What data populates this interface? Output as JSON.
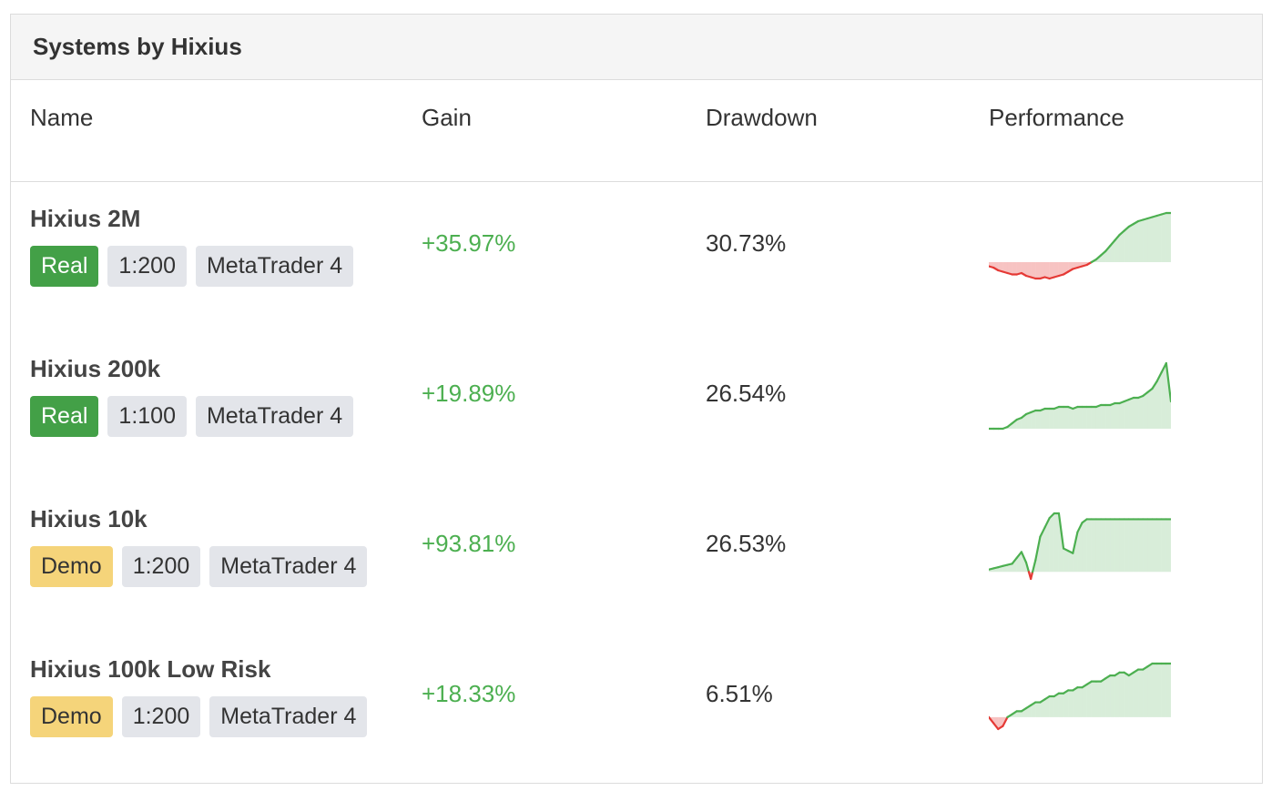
{
  "card": {
    "title": "Systems by Hixius"
  },
  "columns": {
    "name": "Name",
    "gain": "Gain",
    "drawdown": "Drawdown",
    "performance": "Performance"
  },
  "colors": {
    "positive": "#4caf50",
    "negative": "#e53935",
    "real_badge": "#43a047",
    "demo_badge": "#f5d47a"
  },
  "systems": [
    {
      "name": "Hixius 2M",
      "account_type": "Real",
      "leverage": "1:200",
      "platform": "MetaTrader 4",
      "gain": "+35.97%",
      "drawdown": "30.73%",
      "performance": {
        "values": [
          -3,
          -4,
          -6,
          -7,
          -8,
          -9,
          -9,
          -8,
          -10,
          -11,
          -12,
          -12,
          -11,
          -12,
          -11,
          -10,
          -9,
          -7,
          -5,
          -4,
          -3,
          -2,
          0,
          2,
          5,
          8,
          12,
          16,
          20,
          23,
          26,
          28,
          30,
          31,
          32,
          33,
          34,
          35,
          36,
          36
        ]
      }
    },
    {
      "name": "Hixius 200k",
      "account_type": "Real",
      "leverage": "1:100",
      "platform": "MetaTrader 4",
      "gain": "+19.89%",
      "drawdown": "26.54%",
      "performance": {
        "values": [
          0,
          0,
          0,
          0,
          1,
          3,
          5,
          6,
          8,
          9,
          10,
          10,
          11,
          11,
          11,
          12,
          12,
          12,
          11,
          12,
          12,
          12,
          12,
          12,
          13,
          13,
          13,
          14,
          14,
          15,
          16,
          17,
          17,
          18,
          20,
          22,
          26,
          31,
          36,
          15
        ]
      }
    },
    {
      "name": "Hixius 10k",
      "account_type": "Demo",
      "leverage": "1:200",
      "platform": "MetaTrader 4",
      "gain": "+93.81%",
      "drawdown": "26.53%",
      "performance": {
        "values": [
          2,
          3,
          4,
          5,
          6,
          7,
          12,
          17,
          8,
          -6,
          10,
          30,
          38,
          46,
          50,
          50,
          20,
          18,
          16,
          34,
          42,
          45,
          45,
          45,
          45,
          45,
          45,
          45,
          45,
          45,
          45,
          45,
          45,
          45,
          45,
          45,
          45,
          45,
          45,
          45
        ]
      }
    },
    {
      "name": "Hixius 100k Low Risk",
      "account_type": "Demo",
      "leverage": "1:200",
      "platform": "MetaTrader 4",
      "gain": "+18.33%",
      "drawdown": "6.51%",
      "performance": {
        "values": [
          0,
          -2,
          -4,
          -3,
          0,
          1,
          2,
          2,
          3,
          4,
          5,
          5,
          6,
          7,
          7,
          8,
          8,
          9,
          9,
          10,
          10,
          11,
          12,
          12,
          12,
          13,
          14,
          14,
          15,
          15,
          14,
          15,
          16,
          16,
          17,
          18,
          18,
          18,
          18,
          18
        ]
      }
    }
  ]
}
